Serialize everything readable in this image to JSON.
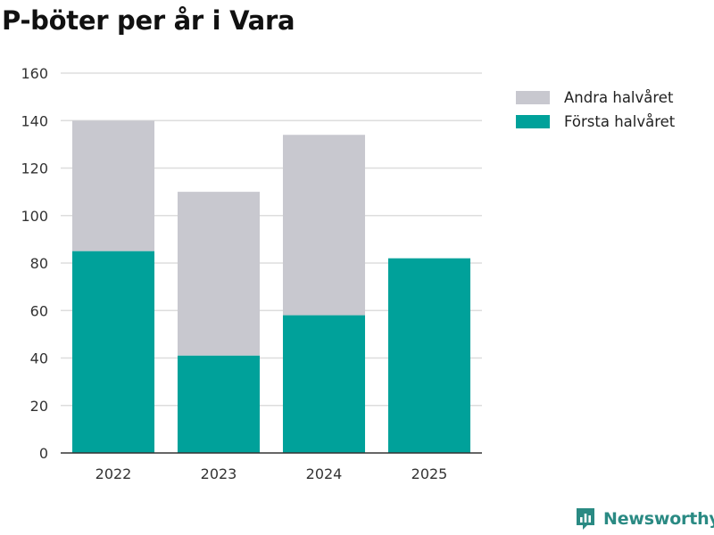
{
  "title": "P-böter per år i Vara",
  "colors": {
    "forsta": "#00a19a",
    "andra": "#c8c8cf",
    "grid": "#dddddd",
    "axis": "#333333",
    "brand": "#2a8a83"
  },
  "legend": [
    {
      "label": "Andra halvåret",
      "color": "#c8c8cf"
    },
    {
      "label": "Första halvåret",
      "color": "#00a19a"
    }
  ],
  "brand": {
    "name": "Newsworthy",
    "icon": "newsworthy-logo-icon"
  },
  "chart_data": {
    "type": "bar",
    "stacked": true,
    "title": "P-böter per år i Vara",
    "xlabel": "",
    "ylabel": "",
    "categories": [
      "2022",
      "2023",
      "2024",
      "2025"
    ],
    "series": [
      {
        "name": "Första halvåret",
        "values": [
          85,
          41,
          58,
          82
        ]
      },
      {
        "name": "Andra halvåret",
        "values": [
          55,
          69,
          76,
          0
        ]
      }
    ],
    "ylim": [
      0,
      160
    ],
    "yticks": [
      0,
      20,
      40,
      60,
      80,
      100,
      120,
      140,
      160
    ],
    "grid": true,
    "legend_position": "top-right"
  }
}
